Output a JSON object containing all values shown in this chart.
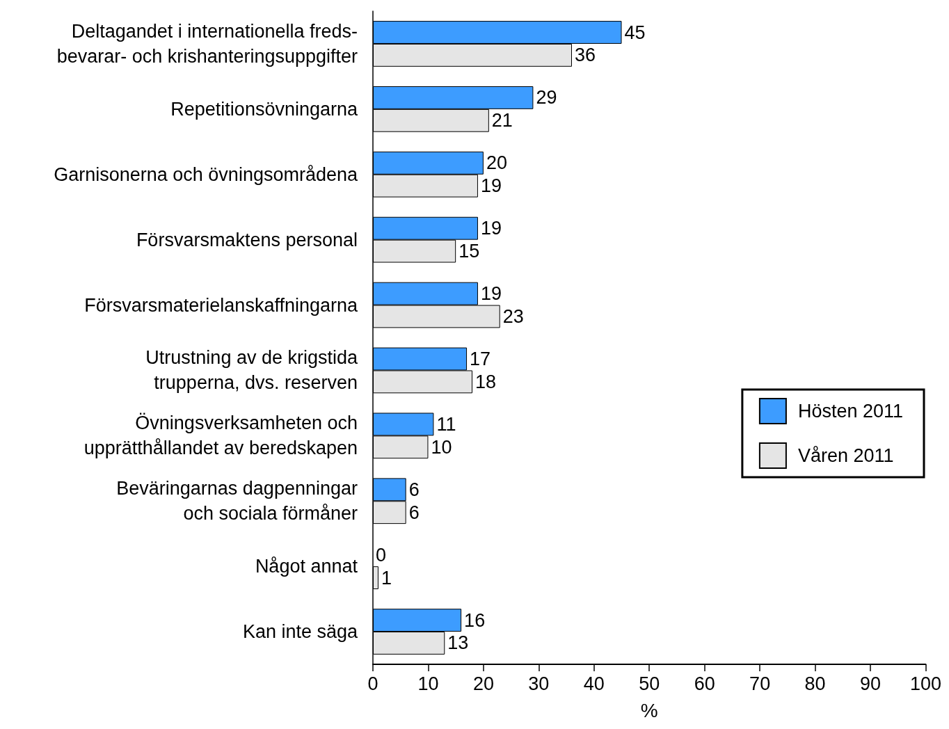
{
  "chart_data": {
    "type": "bar",
    "orientation": "horizontal",
    "categories": [
      "Deltagandet i internationella freds-\nbevarar- och krishanteringsuppgifter",
      "Repetitionsövningarna",
      "Garnisonerna och övningsområdena",
      "Försvarsmaktens personal",
      "Försvarsmaterielanskaffningarna",
      "Utrustning av de krigstida\ntrupperna, dvs. reserven",
      "Övningsverksamheten och\nupprätthållandet av beredskapen",
      "Beväringarnas dagpenningar\noch sociala förmåner",
      "Något annat",
      "Kan inte säga"
    ],
    "series": [
      {
        "name": "Hösten 2011",
        "color": "#3d9cff",
        "values": [
          45,
          29,
          20,
          19,
          19,
          17,
          11,
          6,
          0,
          16
        ]
      },
      {
        "name": "Våren 2011",
        "color": "#e5e5e5",
        "values": [
          36,
          21,
          19,
          15,
          23,
          18,
          10,
          6,
          1,
          13
        ]
      }
    ],
    "xlabel": "%",
    "xlim": [
      0,
      100
    ],
    "xticks": [
      0,
      10,
      20,
      30,
      40,
      50,
      60,
      70,
      80,
      90,
      100
    ],
    "data_labels": true,
    "legend": "right",
    "grid": false
  }
}
